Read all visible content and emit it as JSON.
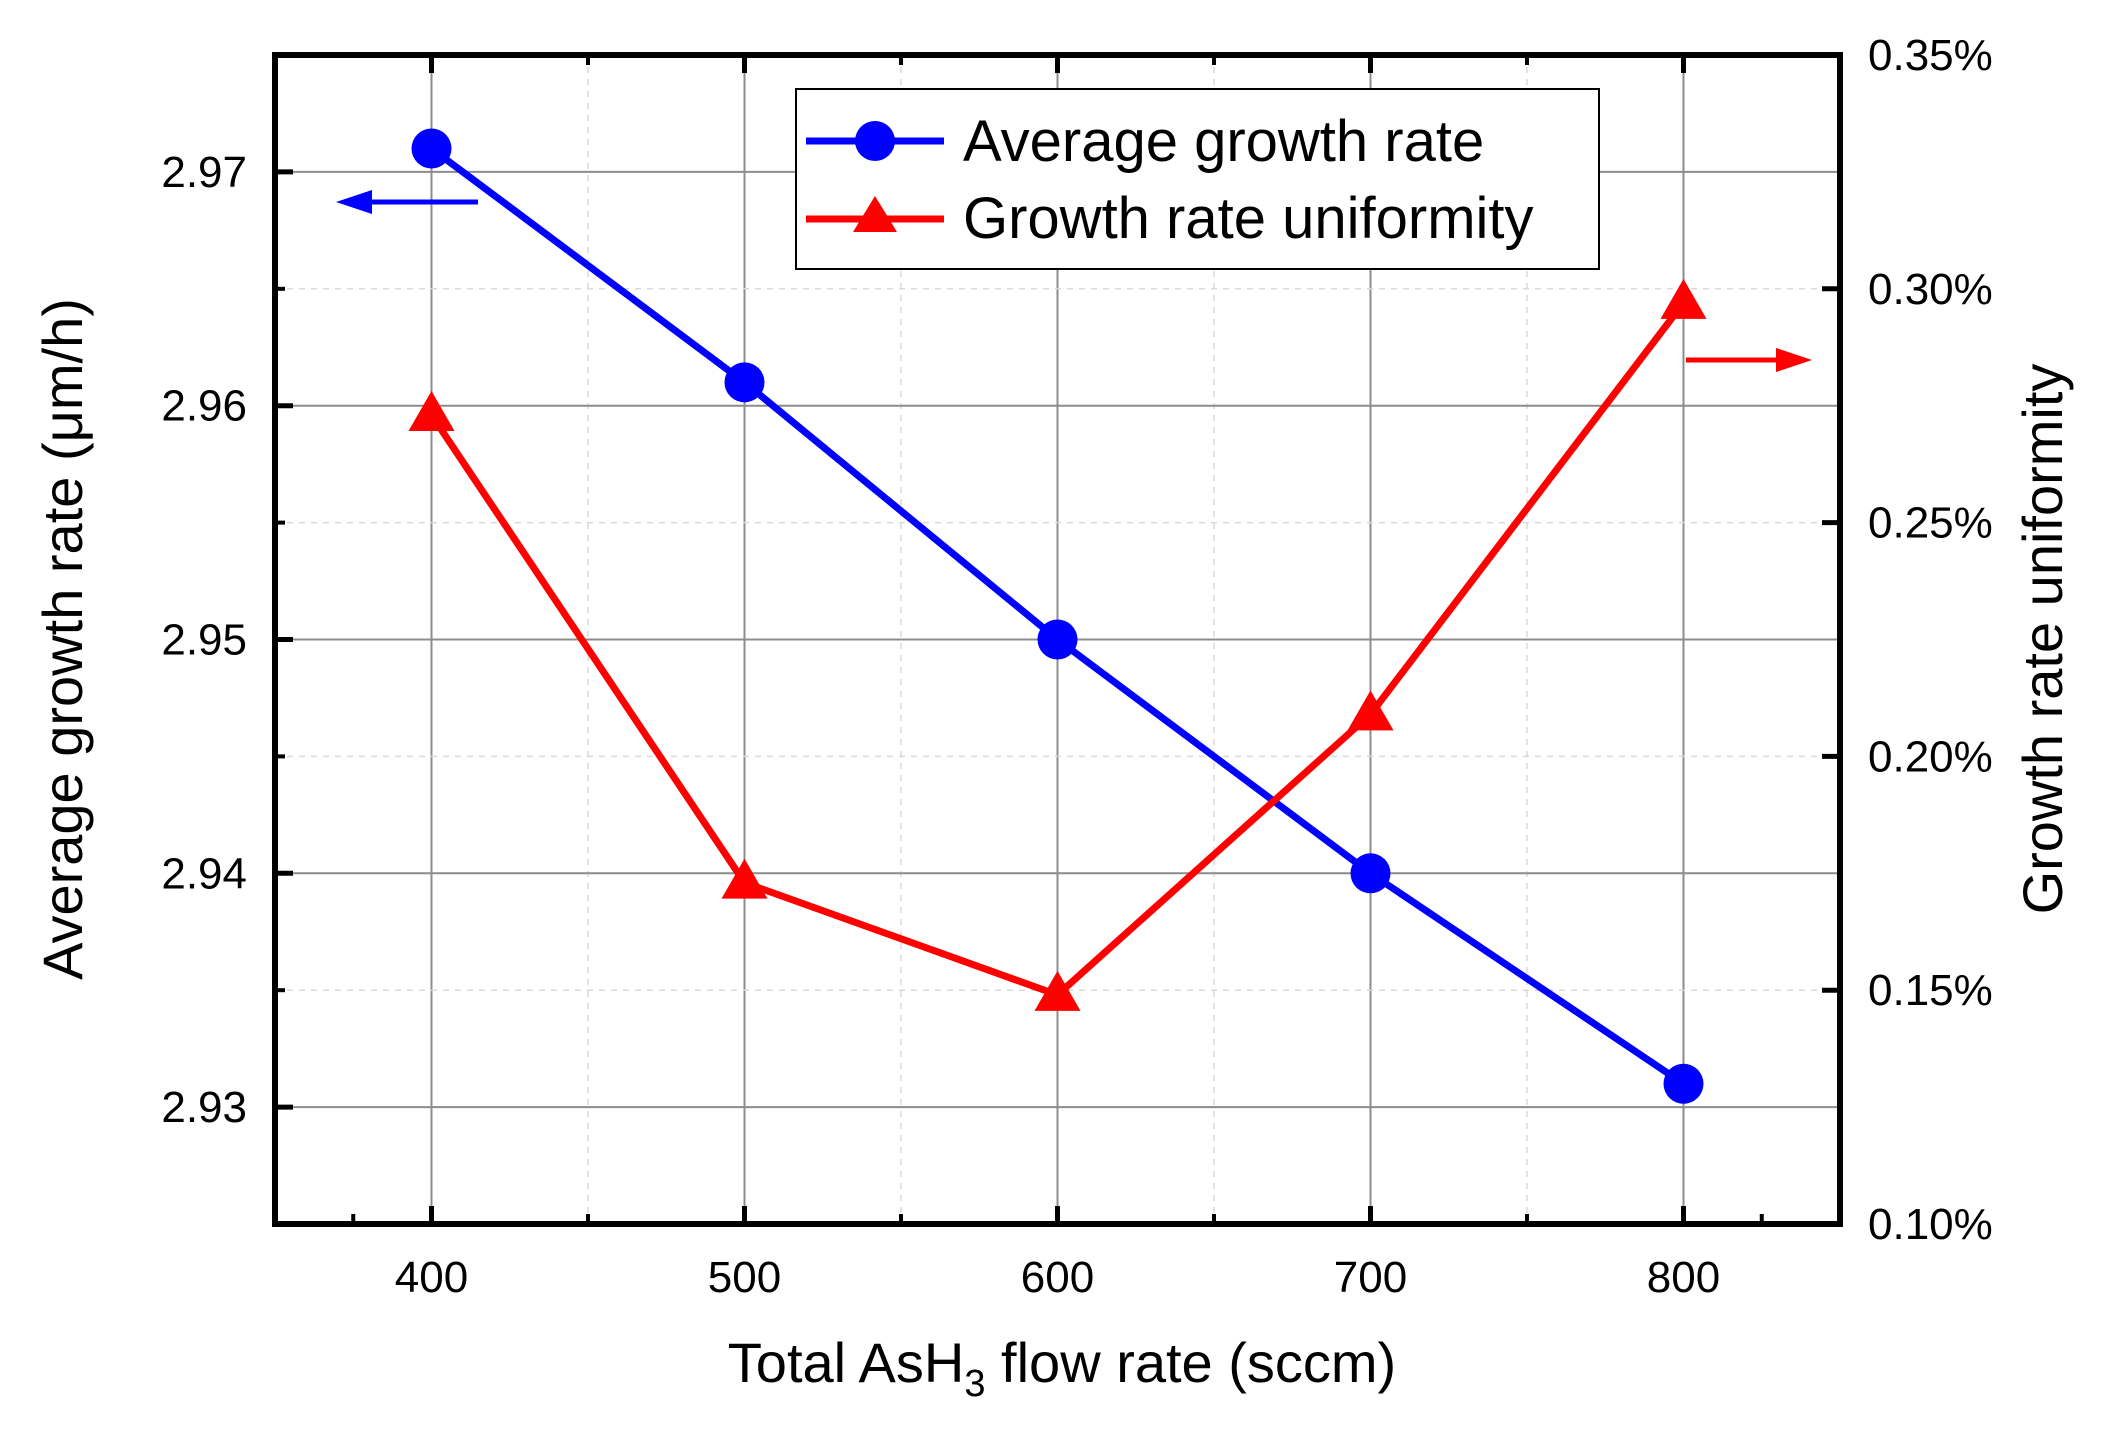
{
  "chart_data": {
    "type": "line",
    "x": [
      400,
      500,
      600,
      700,
      800
    ],
    "xlabel": {
      "pre": "Total AsH",
      "sub": "3",
      "post": " flow rate (sccm)"
    },
    "xlim": [
      350,
      850
    ],
    "xticks": [
      400,
      500,
      600,
      700,
      800
    ],
    "xtick_labels": [
      "400",
      "500",
      "600",
      "700",
      "800"
    ],
    "ylabel_left": "Average growth rate (μm/h)",
    "ylim_left": [
      2.925,
      2.975
    ],
    "yticks_left": [
      2.93,
      2.94,
      2.95,
      2.96,
      2.97
    ],
    "ytick_labels_left": [
      "2.93",
      "2.94",
      "2.95",
      "2.96",
      "2.97"
    ],
    "ylabel_right": "Growth rate uniformity",
    "ylim_right": [
      0.1,
      0.35
    ],
    "yticks_right": [
      0.1,
      0.15,
      0.2,
      0.25,
      0.3,
      0.35
    ],
    "ytick_labels_right": [
      "0.10%",
      "0.15%",
      "0.20%",
      "0.25%",
      "0.30%",
      "0.35%"
    ],
    "grid": true,
    "legend_position": "top-right",
    "series": [
      {
        "name": "Average growth rate",
        "axis": "left",
        "marker": "circle",
        "color": "#0000ff",
        "values": [
          2.971,
          2.961,
          2.95,
          2.94,
          2.931
        ]
      },
      {
        "name": "Growth rate uniformity",
        "axis": "right",
        "marker": "triangle",
        "color": "#ff0000",
        "values": [
          0.273,
          0.173,
          0.149,
          0.209,
          0.297
        ]
      }
    ]
  }
}
